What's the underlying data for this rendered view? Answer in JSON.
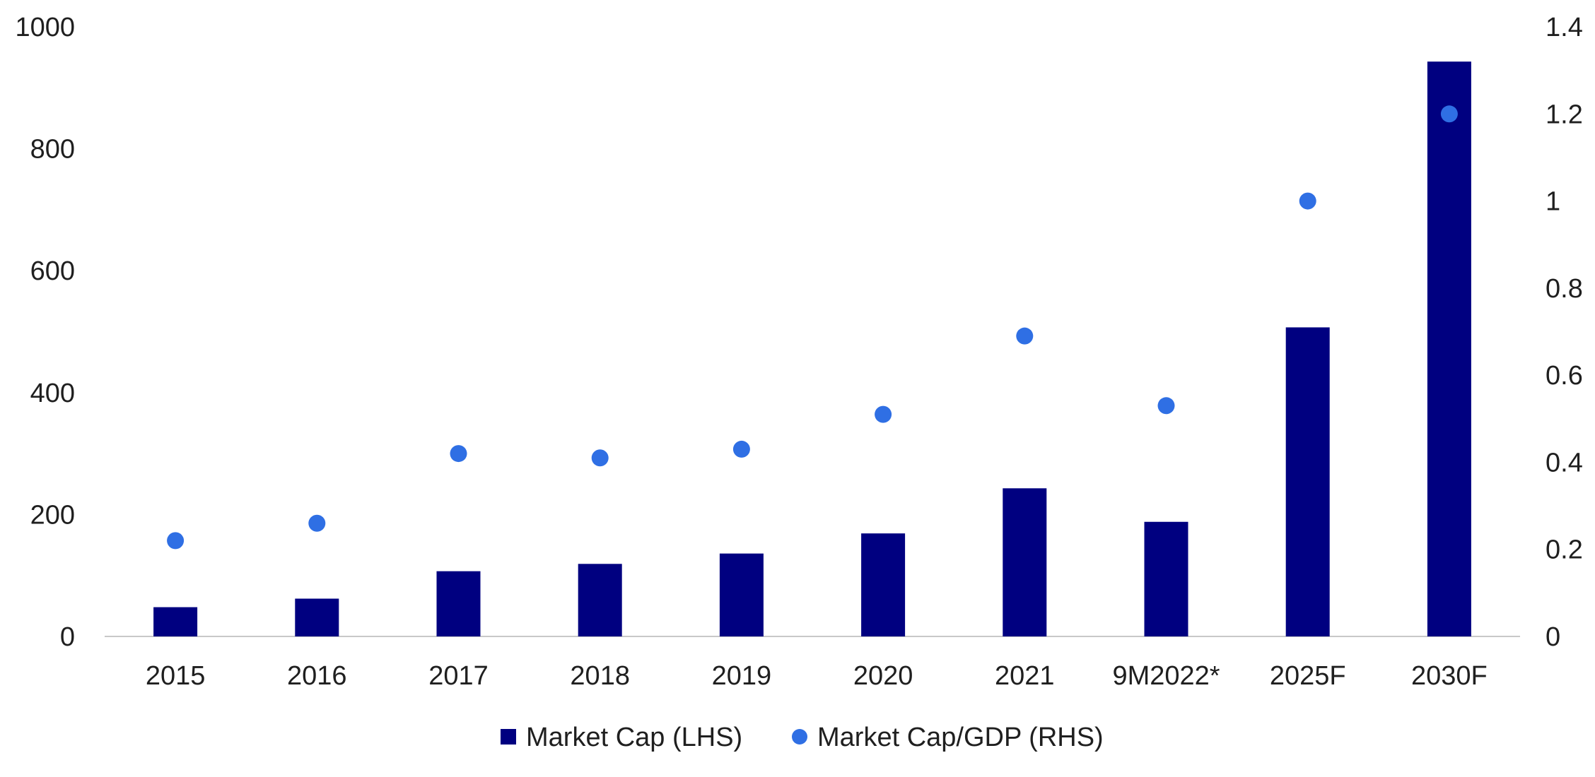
{
  "chart_data": {
    "type": "bar",
    "categories": [
      "2015",
      "2016",
      "2017",
      "2018",
      "2019",
      "2020",
      "2021",
      "9M2022*",
      "2025F",
      "2030F"
    ],
    "series": [
      {
        "name": "Market Cap (LHS)",
        "type": "bar",
        "axis": "left",
        "color": "#000080",
        "values": [
          48,
          62,
          107,
          119,
          136,
          169,
          243,
          188,
          507,
          943
        ]
      },
      {
        "name": "Market Cap/GDP (RHS)",
        "type": "scatter",
        "axis": "right",
        "color": "#2f6fe4",
        "values": [
          0.22,
          0.26,
          0.42,
          0.41,
          0.43,
          0.51,
          0.69,
          0.53,
          1.0,
          1.2
        ]
      }
    ],
    "left_axis": {
      "min": 0,
      "max": 1000,
      "ticks": [
        "0",
        "200",
        "400",
        "600",
        "800",
        "1000"
      ]
    },
    "right_axis": {
      "min": 0,
      "max": 1.4,
      "ticks": [
        "0",
        "0.2",
        "0.4",
        "0.6",
        "0.8",
        "1",
        "1.2",
        "1.4"
      ]
    },
    "legend": {
      "position": "bottom",
      "items": [
        {
          "label": "Market Cap (LHS)",
          "marker": "square",
          "color": "#000080"
        },
        {
          "label": "Market Cap/GDP (RHS)",
          "marker": "circle",
          "color": "#2f6fe4"
        }
      ]
    },
    "grid": false
  }
}
